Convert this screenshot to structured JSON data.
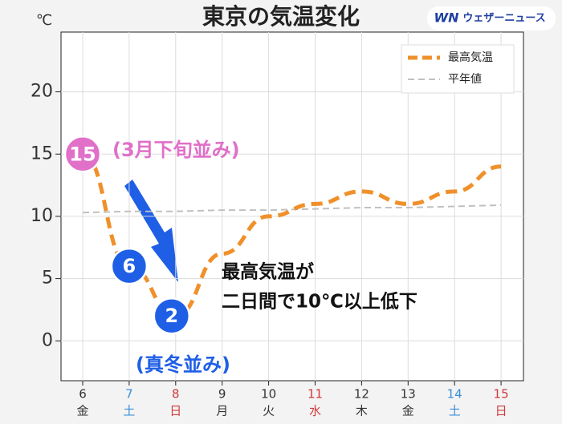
{
  "chart_data": {
    "type": "line",
    "title": "東京の気温変化",
    "unit_label": "℃",
    "brand": {
      "logo": "WN",
      "name": "ウェザーニュース"
    },
    "categories": [
      "6",
      "7",
      "8",
      "9",
      "10",
      "11",
      "12",
      "13",
      "14",
      "15"
    ],
    "weekdays": [
      "金",
      "土",
      "日",
      "月",
      "火",
      "水",
      "木",
      "金",
      "土",
      "日"
    ],
    "category_colors": [
      "#333333",
      "#3a8fd8",
      "#d03a3a",
      "#333333",
      "#333333",
      "#d03a3a",
      "#333333",
      "#333333",
      "#3a8fd8",
      "#d03a3a"
    ],
    "series": [
      {
        "name": "最高気温",
        "color": "#f0902a",
        "values": [
          15,
          6,
          2,
          7,
          10,
          11,
          12,
          11,
          12,
          14
        ],
        "value_labels": [
          "15",
          "6",
          "2",
          null,
          null,
          null,
          null,
          null,
          null,
          null
        ],
        "label_colors": [
          "#e070c8",
          "#1f5fe6",
          "#1f5fe6",
          null,
          null,
          null,
          null,
          null,
          null,
          null
        ]
      },
      {
        "name": "平年値",
        "color": "#c0c0c0",
        "values": [
          10.3,
          10.4,
          10.4,
          10.5,
          10.5,
          10.6,
          10.7,
          10.7,
          10.8,
          10.9
        ]
      }
    ],
    "ylim": [
      -3.2,
      24.8
    ],
    "yticks": [
      0,
      5,
      10,
      15,
      20
    ],
    "grid": true,
    "legend": "upper right",
    "annotations": [
      {
        "text": "(3月下旬並み)",
        "color": "#e070c8"
      },
      {
        "text": "(真冬並み)",
        "color": "#1f5fe6"
      },
      {
        "text": "最高気温が",
        "color": "#111111"
      },
      {
        "text": "二日間で10℃以上低下",
        "color": "#111111"
      }
    ]
  }
}
